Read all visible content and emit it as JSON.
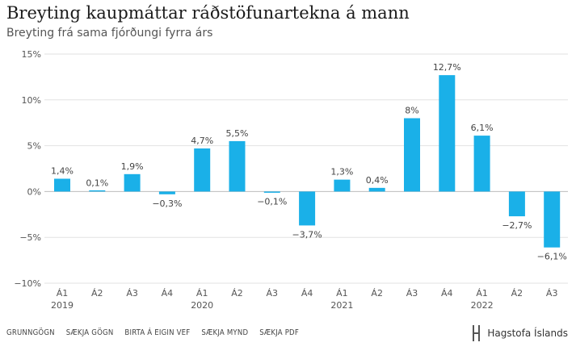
{
  "title": "Breyting kaupmáttar ráðstöfunartekna á mann",
  "subtitle": "Breyting frá sama fjórðungi fyrra árs",
  "footer": {
    "links": [
      "GRUNNGÖGN",
      "SÆKJA GÖGN",
      "BIRTA Á EIGIN VEF",
      "SÆKJA MYND",
      "SÆKJA PDF"
    ],
    "logo_text": "Hagstofa Íslands"
  },
  "colors": {
    "bar": "#1ab0e8",
    "grid": "#e2e2e2",
    "zero": "#bdbdbd"
  },
  "chart_data": {
    "type": "bar",
    "categories": [
      "Á1",
      "Á2",
      "Á3",
      "Á4",
      "Á1",
      "Á2",
      "Á3",
      "Á4",
      "Á1",
      "Á2",
      "Á3",
      "Á4",
      "Á1",
      "Á2",
      "Á3"
    ],
    "year_labels": [
      "2019",
      "2020",
      "2021",
      "2022"
    ],
    "values": [
      1.4,
      0.1,
      1.9,
      -0.3,
      4.7,
      5.5,
      -0.1,
      -3.7,
      1.3,
      0.4,
      8,
      12.7,
      6.1,
      -2.7,
      -6.1
    ],
    "value_labels": [
      "1,4%",
      "0,1%",
      "1,9%",
      "−0,3%",
      "4,7%",
      "5,5%",
      "−0,1%",
      "−3,7%",
      "1,3%",
      "0,4%",
      "8%",
      "12,7%",
      "6,1%",
      "−2,7%",
      "−6,1%"
    ],
    "y_ticks": [
      15,
      10,
      5,
      0,
      -5,
      -10
    ],
    "y_tick_labels": [
      "15%",
      "10%",
      "5%",
      "0%",
      "−5%",
      "−10%"
    ],
    "ylim": [
      -10,
      15
    ],
    "grid": true
  }
}
